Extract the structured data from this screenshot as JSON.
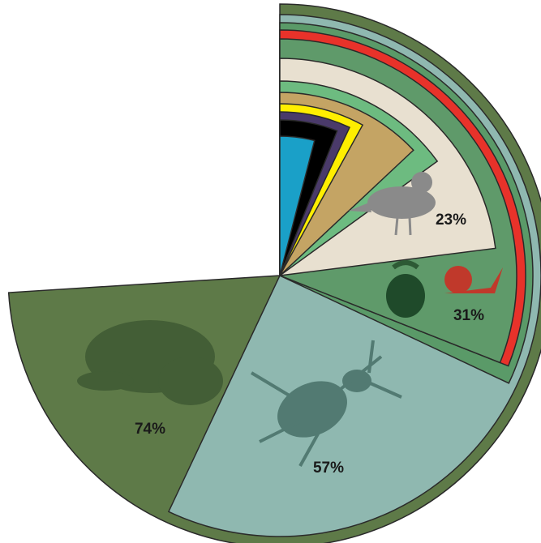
{
  "chart_data": {
    "type": "pie",
    "values": [
      74,
      57,
      32,
      31,
      31,
      23,
      15,
      13,
      8,
      7,
      6,
      4
    ],
    "value_labels": [
      "74%",
      "57%",
      null,
      null,
      "31%",
      "23%",
      null,
      null,
      null,
      null,
      null,
      null
    ],
    "colors": [
      "#5e7a48",
      "#8fb8b0",
      "#5a9a68",
      "#e8322a",
      "#5f9a6a",
      "#e8e0d0",
      "#6dbb80",
      "#c4a464",
      "#ffee00",
      "#4a3a6a",
      "#000000",
      "#1aa0c8"
    ]
  }
}
